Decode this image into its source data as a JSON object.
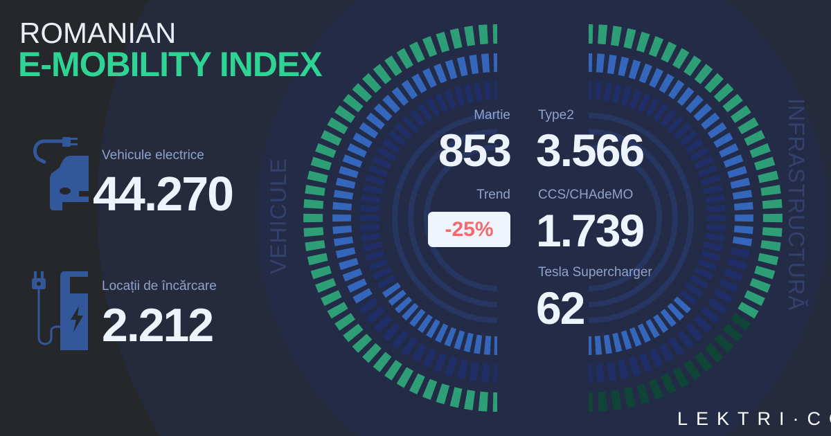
{
  "title": {
    "line1": "ROMANIAN",
    "line2": "E-MOBILITY INDEX"
  },
  "stats": {
    "vehicles": {
      "label": "Vehicule electrice",
      "value": "44.270",
      "icon": "electric-car-icon"
    },
    "locations": {
      "label": "Locații de încărcare",
      "value": "2.212",
      "icon": "charging-station-icon"
    }
  },
  "center": {
    "month_label": "Martie",
    "month_value": "853",
    "trend_label": "Trend",
    "trend_value": "-25%",
    "type2_label": "Type2",
    "type2_value": "3.566",
    "ccs_label": "CCS/CHAdeMO",
    "ccs_value": "1.739",
    "tesla_label": "Tesla Supercharger",
    "tesla_value": "62"
  },
  "side_labels": {
    "left": "VEHICULE",
    "right": "INFRASTRUCTURĂ"
  },
  "logo": "LEKTRI·CO",
  "colors": {
    "accent_green": "#2fd393",
    "seg_green": "#2e9e77",
    "seg_green_dim": "#0f4436",
    "seg_blue": "#3466bc",
    "seg_dim": "#1f2e66",
    "trend_red": "#f26b6b"
  },
  "gauges": {
    "left": [
      {
        "color": "seg_green",
        "dim": "seg_green_dim",
        "lit": [
          0,
          1
        ]
      },
      {
        "color": "seg_blue",
        "dim": "seg_dim",
        "lit": [
          0,
          0.67
        ]
      },
      {
        "color": "seg_blue",
        "dim": "seg_dim",
        "lit": [
          0.68,
          1
        ]
      }
    ],
    "right": [
      {
        "color": "seg_green",
        "dim": "seg_green_dim",
        "lit": [
          0,
          0.68
        ]
      },
      {
        "color": "seg_blue",
        "dim": "seg_dim",
        "lit": [
          0,
          0.57
        ]
      },
      {
        "color": "seg_blue",
        "dim": "seg_dim",
        "lit": [
          0.72,
          1
        ]
      }
    ]
  }
}
